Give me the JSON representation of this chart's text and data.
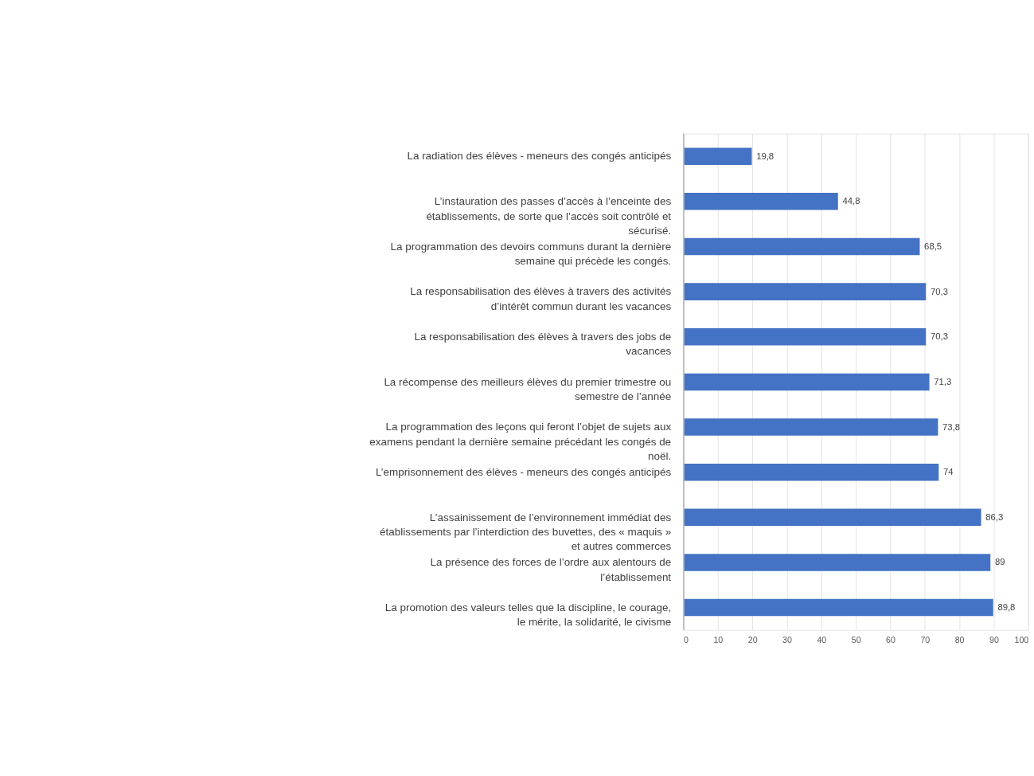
{
  "chart_data": {
    "type": "bar",
    "orientation": "horizontal",
    "categories": [
      "La radiation des élèves - meneurs des congés anticipés",
      "L’instauration des passes d’accès à l’enceinte des établissements, de sorte que l’accès soit contrôlé et sécurisé.",
      "La programmation des devoirs communs durant la dernière semaine qui précède les congés.",
      "La responsabilisation des élèves à travers des activités d’intérêt commun durant les vacances",
      "La responsabilisation des élèves à travers des jobs de vacances",
      "La récompense des meilleurs élèves du premier trimestre ou semestre de l’année",
      "La programmation des leçons qui feront l’objet de sujets aux examens pendant la dernière semaine précédant les congés de noël.",
      "L’emprisonnement des élèves - meneurs des congés anticipés",
      "L’assainissement de l’environnement immédiat des établissements par l’interdiction des buvettes, des « maquis » et autres commerces",
      "La présence des forces de l’ordre aux alentours de l’établissement",
      "La promotion des valeurs telles que la discipline, le courage, le mérite, la solidarité, le civisme"
    ],
    "values": [
      19.8,
      44.8,
      68.5,
      70.3,
      70.3,
      71.3,
      73.8,
      74,
      86.3,
      89,
      89.8
    ],
    "value_labels": [
      "19,8",
      "44,8",
      "68,5",
      "70,3",
      "70,3",
      "71,3",
      "73,8",
      "74",
      "86,3",
      "89",
      "89,8"
    ],
    "color": "#4472c4",
    "xlim": [
      0,
      100
    ],
    "xticks": [
      0,
      10,
      20,
      30,
      40,
      50,
      60,
      70,
      80,
      90,
      100
    ],
    "grid": "x"
  }
}
